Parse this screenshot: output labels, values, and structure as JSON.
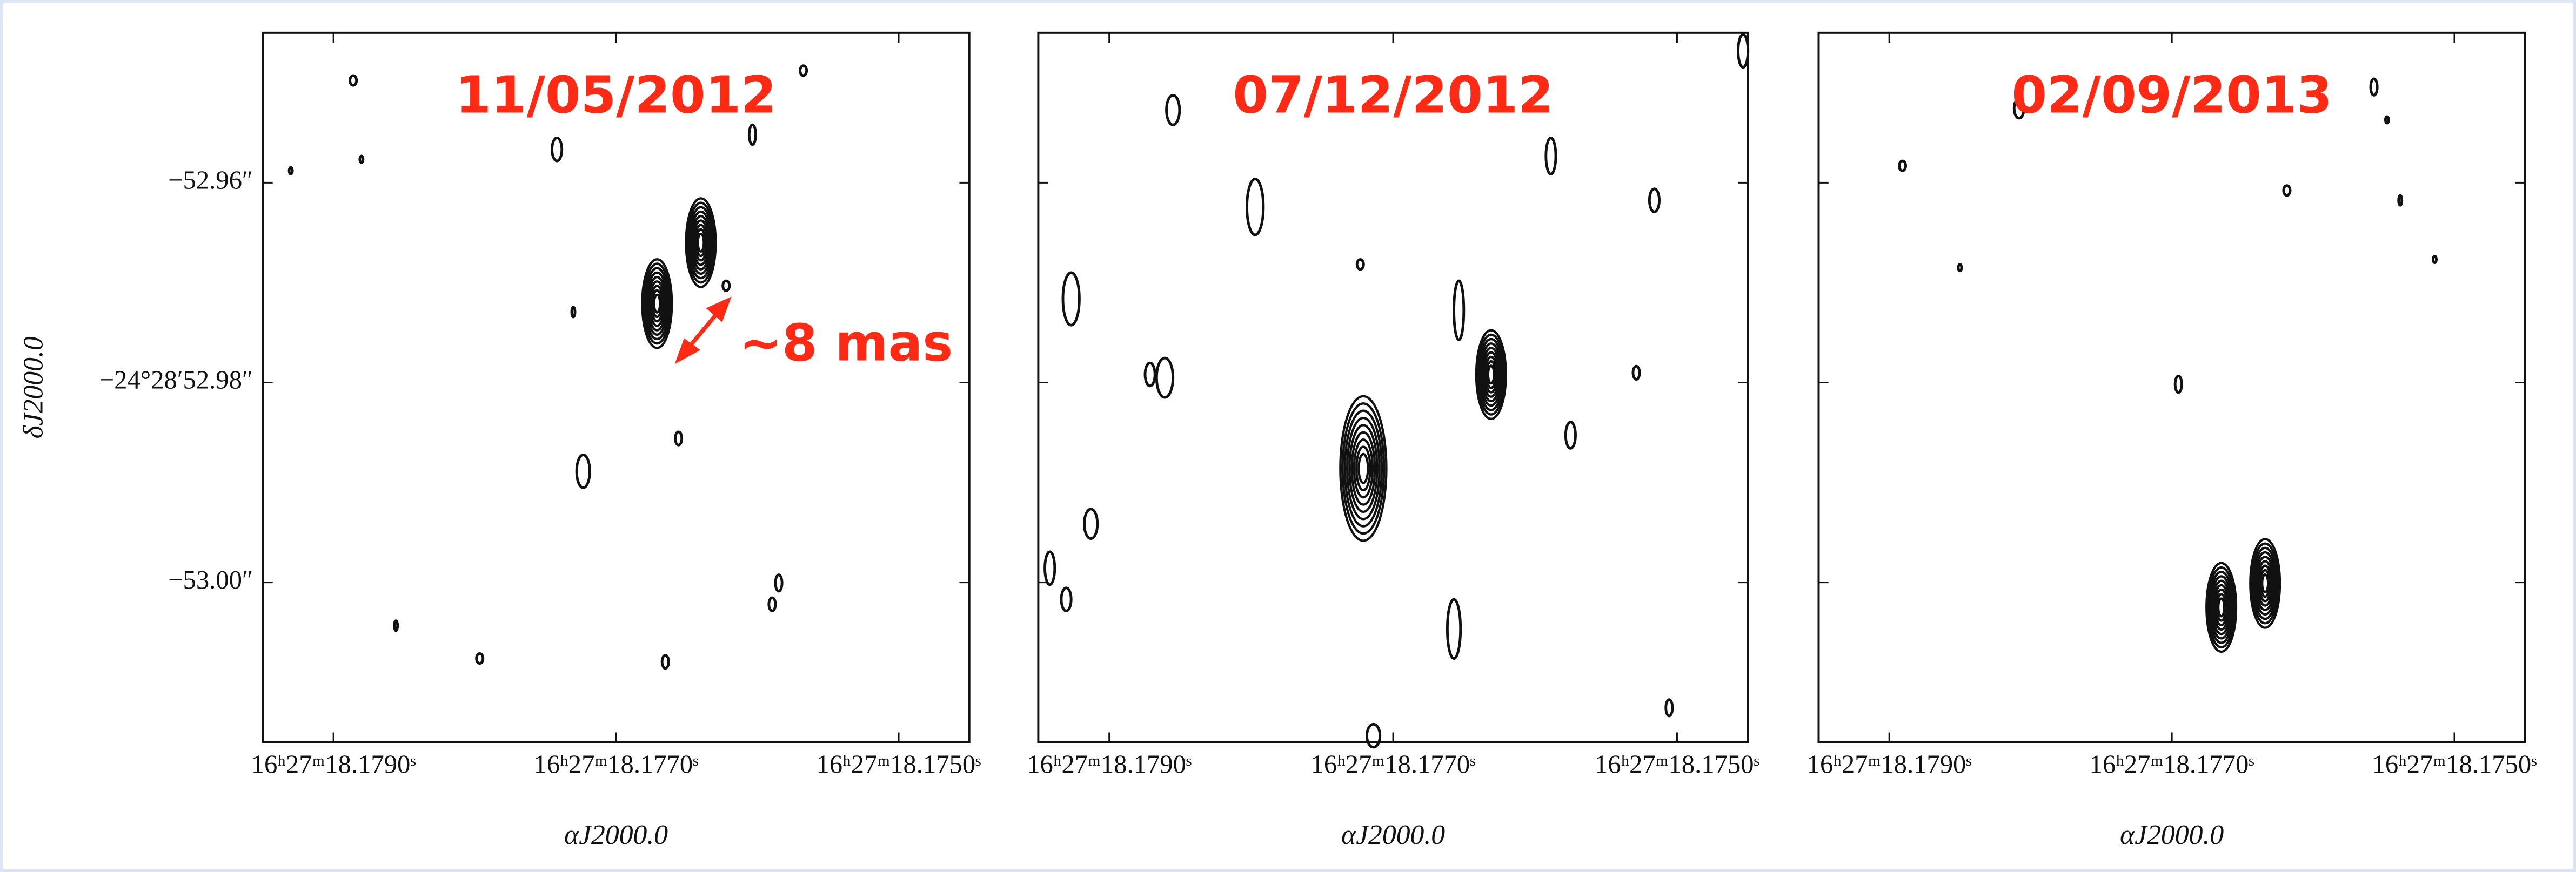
{
  "chart_data": [
    {
      "type": "contour",
      "title": "11/05/2012",
      "title_color": "#ff2a14",
      "annotation": "~8 mas",
      "xlabel": "αJ2000.0",
      "ylabel": "δJ2000.0",
      "color": "#111111",
      "xlim": [
        18.1795,
        18.1745
      ],
      "ylim": [
        -53.016,
        -52.945
      ],
      "xticks": [
        {
          "value": 18.179,
          "label": "16ʰ27ᵐ18.1790ˢ"
        },
        {
          "value": 18.177,
          "label": "16ʰ27ᵐ18.1770ˢ"
        },
        {
          "value": 18.175,
          "label": "16ʰ27ᵐ18.1750ˢ"
        }
      ],
      "yticks": [
        {
          "value": -52.96,
          "label": "−52.96″"
        },
        {
          "value": -52.98,
          "label": "−24°28′52.98″"
        },
        {
          "value": -53.0,
          "label": "−53.00″"
        }
      ],
      "sources": {
        "x": [
          18.17671,
          18.1764
        ],
        "y": [
          -52.9721,
          -52.966
        ]
      }
    },
    {
      "type": "contour",
      "title": "07/12/2012",
      "title_color": "#ff2a14",
      "xlabel": "αJ2000.0",
      "color": "#111111",
      "xlim": [
        18.1795,
        18.1745
      ],
      "ylim": [
        -53.016,
        -52.945
      ],
      "xticks": [
        {
          "value": 18.179,
          "label": "16ʰ27ᵐ18.1790ˢ"
        },
        {
          "value": 18.177,
          "label": "16ʰ27ᵐ18.1770ˢ"
        },
        {
          "value": 18.175,
          "label": "16ʰ27ᵐ18.1750ˢ"
        }
      ],
      "yticks": [
        {
          "value": -52.96,
          "label": null
        },
        {
          "value": -52.98,
          "label": null
        },
        {
          "value": -53.0,
          "label": null
        }
      ],
      "sources": {
        "x": [
          18.17721,
          18.17631
        ],
        "y": [
          -52.9886,
          -52.9792
        ]
      }
    },
    {
      "type": "contour",
      "title": "02/09/2013",
      "title_color": "#ff2a14",
      "xlabel": "αJ2000.0",
      "color": "#111111",
      "xlim": [
        18.1795,
        18.1745
      ],
      "ylim": [
        -53.016,
        -52.945
      ],
      "xticks": [
        {
          "value": 18.179,
          "label": "16ʰ27ᵐ18.1790ˢ"
        },
        {
          "value": 18.177,
          "label": "16ʰ27ᵐ18.1770ˢ"
        },
        {
          "value": 18.175,
          "label": "16ʰ27ᵐ18.1750ˢ"
        }
      ],
      "yticks": [
        {
          "value": -52.96,
          "label": null
        },
        {
          "value": -52.98,
          "label": null
        },
        {
          "value": -53.0,
          "label": null
        }
      ],
      "sources": {
        "x": [
          18.17665,
          18.17634
        ],
        "y": [
          -53.0025,
          -53.0001
        ]
      }
    }
  ]
}
